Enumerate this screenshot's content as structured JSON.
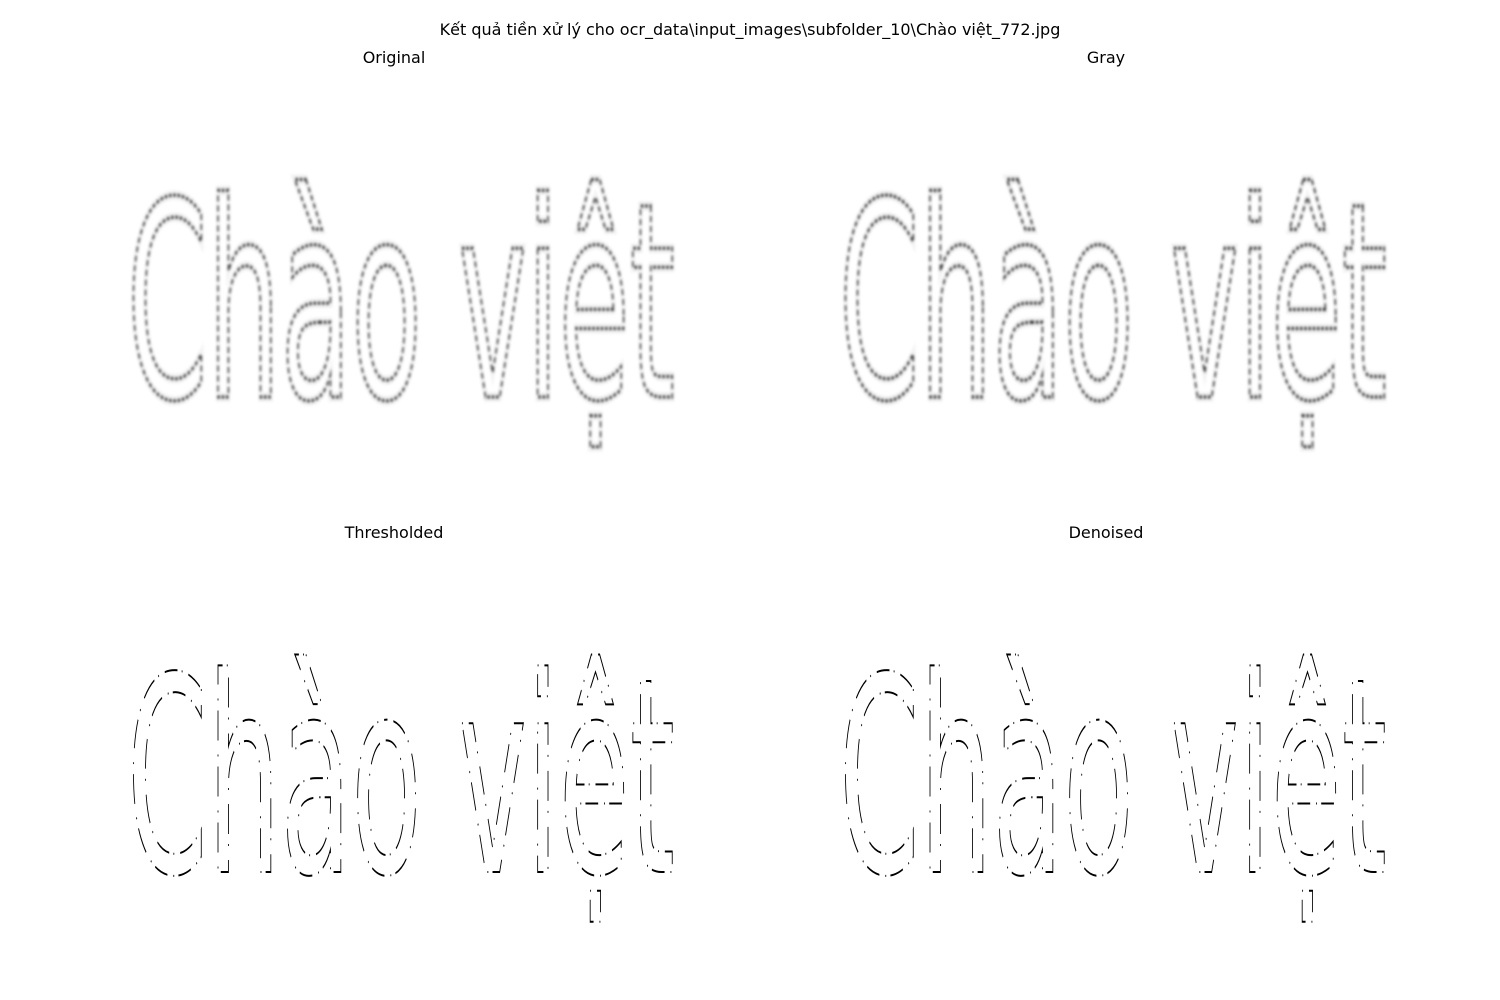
{
  "figure": {
    "suptitle": "Kết quả tiền xử lý cho ocr_data\\input_images\\subfolder_10\\Chào việt_772.jpg"
  },
  "panels": [
    {
      "title": "Original",
      "image_text": "Chào việt",
      "style": "soft"
    },
    {
      "title": "Gray",
      "image_text": "Chào việt",
      "style": "soft"
    },
    {
      "title": "Thresholded",
      "image_text": "Chào việt",
      "style": "binary"
    },
    {
      "title": "Denoised",
      "image_text": "Chào việt",
      "style": "binary"
    }
  ]
}
